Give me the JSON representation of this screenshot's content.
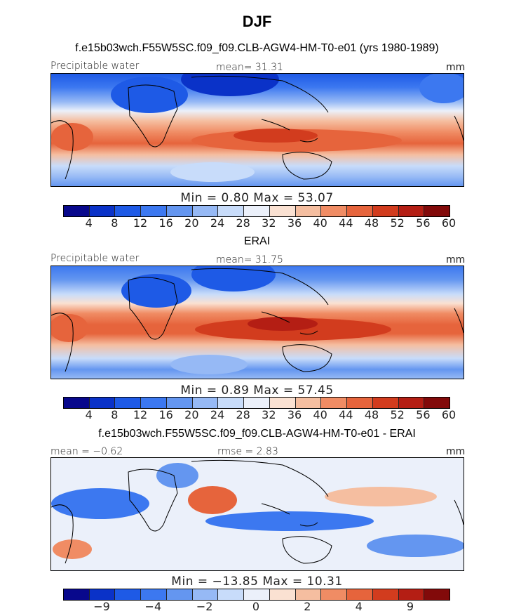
{
  "figure": {
    "title": "DJF",
    "units": "mm"
  },
  "palettes": {
    "full": [
      "#08088c",
      "#0a32c8",
      "#1e5ae6",
      "#3c78f0",
      "#6496f0",
      "#96b9f5",
      "#c8dcfa",
      "#ebf0fa",
      "#fae1d2",
      "#f5bea0",
      "#f08c64",
      "#e6643c",
      "#d23c1e",
      "#b41e14",
      "#820a0a"
    ],
    "diff": [
      "#08088c",
      "#0a32c8",
      "#1e5ae6",
      "#3c78f0",
      "#6496f0",
      "#96b9f5",
      "#c8dcfa",
      "#ebf0fa",
      "#fae1d2",
      "#f5bea0",
      "#f08c64",
      "#e6643c",
      "#d23c1e",
      "#b41e14",
      "#820a0a"
    ]
  },
  "chart_data": [
    {
      "type": "heatmap",
      "title": "f.e15b03wch.F55W5SC.f09_f09.CLB-AGW4-HM-T0-e01 (yrs 1980-1989)",
      "variable": "Precipitable water",
      "mean_text": "mean=  31.31",
      "units": "mm",
      "minmax_text": "Min =    0.80 Max =   53.07",
      "colorbar_ticks": [
        "4",
        "8",
        "12",
        "16",
        "20",
        "24",
        "28",
        "32",
        "36",
        "40",
        "44",
        "48",
        "52",
        "56",
        "60"
      ]
    },
    {
      "type": "heatmap",
      "title": "ERAI",
      "variable": "Precipitable water",
      "mean_text": "mean=  31.75",
      "units": "mm",
      "minmax_text": "Min =    0.89 Max =   57.45",
      "colorbar_ticks": [
        "4",
        "8",
        "12",
        "16",
        "20",
        "24",
        "28",
        "32",
        "36",
        "40",
        "44",
        "48",
        "52",
        "56",
        "60"
      ]
    },
    {
      "type": "heatmap",
      "title": "f.e15b03wch.F55W5SC.f09_f09.CLB-AGW4-HM-T0-e01 - ERAI",
      "mean_text": "mean =   −0.62",
      "rmse_text": "rmse =    2.83",
      "units": "mm",
      "minmax_text": "Min = −13.85 Max =   10.31",
      "colorbar_ticks": [
        "−9",
        "−4",
        "−2",
        "0",
        "2",
        "4",
        "9"
      ]
    }
  ]
}
